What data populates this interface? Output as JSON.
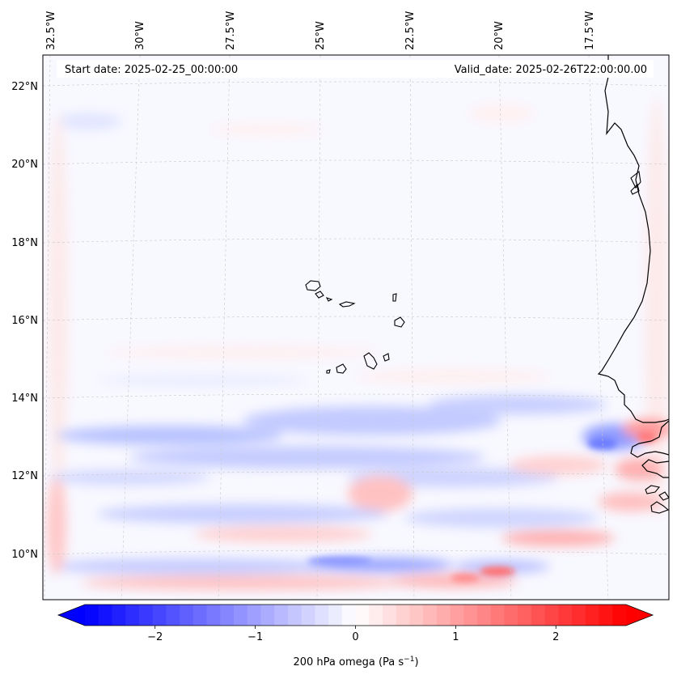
{
  "header": {
    "start_date": "Start date: 2025-02-25_00:00:00",
    "valid_date": "Valid_date: 2025-02-26T22:00:00.00"
  },
  "longitude_labels": [
    "32.5°W",
    "30°W",
    "27.5°W",
    "25°W",
    "22.5°W",
    "20°W",
    "17.5°W"
  ],
  "latitude_labels": [
    "22°N",
    "20°N",
    "18°N",
    "16°N",
    "14°N",
    "12°N",
    "10°N"
  ],
  "colorbar": {
    "ticks": [
      "−2",
      "−1",
      "0",
      "1",
      "2"
    ],
    "tick_values": [
      -2,
      -1,
      0,
      1,
      2
    ],
    "range": [
      -2.7,
      2.7
    ],
    "label_prefix": "200 hPa omega (Pa s",
    "label_exponent": "−1",
    "label_suffix": ")",
    "colors": {
      "min": "#0000ff",
      "mid": "#ffffff",
      "max": "#ff0000"
    }
  },
  "field": {
    "variable": "200 hPa omega",
    "units": "Pa s-1",
    "background_color": "#f8f8ff",
    "coastline_color": "#000000",
    "gridline_color": "#c8c8c8"
  }
}
